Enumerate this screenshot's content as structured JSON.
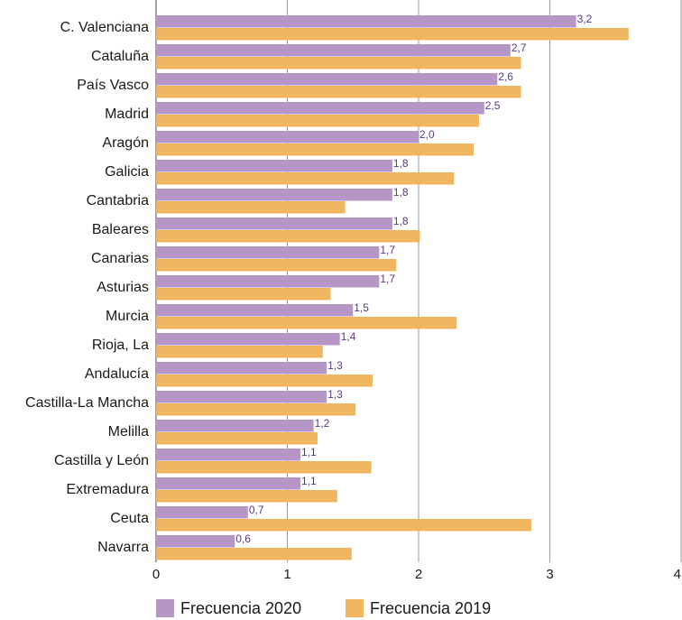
{
  "chart_data": {
    "type": "bar",
    "orientation": "horizontal",
    "categories": [
      "C. Valenciana",
      "Cataluña",
      "País Vasco",
      "Madrid",
      "Aragón",
      "Galicia",
      "Cantabria",
      "Baleares",
      "Canarias",
      "Asturias",
      "Murcia",
      "Rioja, La",
      "Andalucía",
      "Castilla-La Mancha",
      "Melilla",
      "Castilla y León",
      "Extremadura",
      "Ceuta",
      "Navarra"
    ],
    "series": [
      {
        "name": "Frecuencia 2020",
        "color": "#b596c6",
        "values": [
          3.2,
          2.7,
          2.6,
          2.5,
          2.0,
          1.8,
          1.8,
          1.8,
          1.7,
          1.7,
          1.5,
          1.4,
          1.3,
          1.3,
          1.2,
          1.1,
          1.1,
          0.7,
          0.6
        ],
        "value_labels": [
          "3,2",
          "2,7",
          "2,6",
          "2,5",
          "2,0",
          "1,8",
          "1,8",
          "1,8",
          "1,7",
          "1,7",
          "1,5",
          "1,4",
          "1,3",
          "1,3",
          "1,2",
          "1,1",
          "1,1",
          "0,7",
          "0,6"
        ]
      },
      {
        "name": "Frecuencia 2019",
        "color": "#f0b65f",
        "values": [
          3.6,
          2.78,
          2.78,
          2.46,
          2.42,
          2.27,
          1.44,
          2.01,
          1.83,
          1.33,
          2.29,
          1.27,
          1.65,
          1.52,
          1.23,
          1.64,
          1.38,
          2.86,
          1.49
        ]
      }
    ],
    "xlim": [
      0,
      4
    ],
    "xticks": [
      0,
      1,
      2,
      3,
      4
    ],
    "grid": true
  }
}
